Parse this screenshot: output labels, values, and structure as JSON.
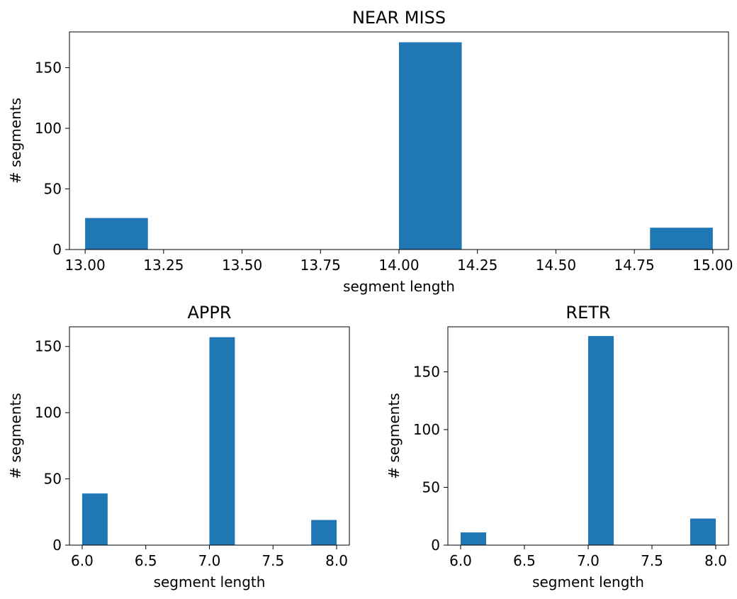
{
  "chart_data": [
    {
      "type": "bar",
      "title": "NEAR MISS",
      "xlabel": "segment length",
      "ylabel": "# segments",
      "xlim": [
        12.95,
        15.05
      ],
      "ylim": [
        0,
        179.55
      ],
      "xticks": [
        "13.00",
        "13.25",
        "13.50",
        "13.75",
        "14.00",
        "14.25",
        "14.50",
        "14.75",
        "15.00"
      ],
      "yticks": [
        "0",
        "50",
        "100",
        "150"
      ],
      "bins": [
        {
          "x0": 13.0,
          "x1": 13.2,
          "value": 26
        },
        {
          "x0": 14.0,
          "x1": 14.2,
          "value": 171
        },
        {
          "x0": 14.8,
          "x1": 15.0,
          "value": 18
        }
      ],
      "color": "#1f77b4"
    },
    {
      "type": "bar",
      "title": "APPR",
      "xlabel": "segment length",
      "ylabel": "# segments",
      "xlim": [
        5.9,
        8.1
      ],
      "ylim": [
        0,
        164.85
      ],
      "xticks": [
        "6.0",
        "6.5",
        "7.0",
        "7.5",
        "8.0"
      ],
      "yticks": [
        "0",
        "50",
        "100",
        "150"
      ],
      "bins": [
        {
          "x0": 6.0,
          "x1": 6.2,
          "value": 39
        },
        {
          "x0": 7.0,
          "x1": 7.2,
          "value": 157
        },
        {
          "x0": 7.8,
          "x1": 8.0,
          "value": 19
        }
      ],
      "color": "#1f77b4"
    },
    {
      "type": "bar",
      "title": "RETR",
      "xlabel": "segment length",
      "ylabel": "# segments",
      "xlim": [
        5.9,
        8.1
      ],
      "ylim": [
        0,
        189
      ],
      "xticks": [
        "6.0",
        "6.5",
        "7.0",
        "7.5",
        "8.0"
      ],
      "yticks": [
        "0",
        "50",
        "100",
        "150"
      ],
      "bins": [
        {
          "x0": 6.0,
          "x1": 6.2,
          "value": 11
        },
        {
          "x0": 7.0,
          "x1": 7.2,
          "value": 181
        },
        {
          "x0": 7.8,
          "x1": 8.0,
          "value": 23
        }
      ],
      "color": "#1f77b4"
    }
  ]
}
